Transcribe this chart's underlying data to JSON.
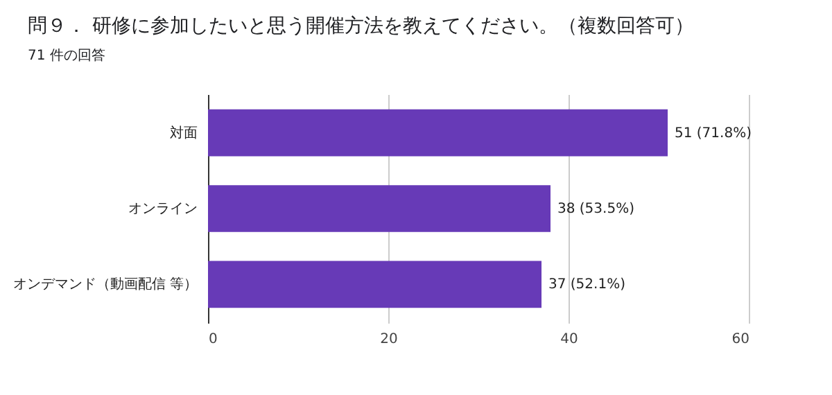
{
  "chart_data": {
    "type": "bar",
    "orientation": "horizontal",
    "title": "問９． 研修に参加したいと思う開催方法を教えてください。（複数回答可）",
    "subtitle": "71 件の回答",
    "categories": [
      "対面",
      "オンライン",
      "オンデマンド（動画配信 等）"
    ],
    "values": [
      51,
      38,
      37
    ],
    "color": "#673ab7",
    "value_labels": [
      "51 (71.8%)",
      "38 (53.5%)",
      "37 (52.1%)"
    ],
    "xlim": [
      0,
      60
    ],
    "xticks": [
      0,
      20,
      40,
      60
    ],
    "grid": "x"
  }
}
